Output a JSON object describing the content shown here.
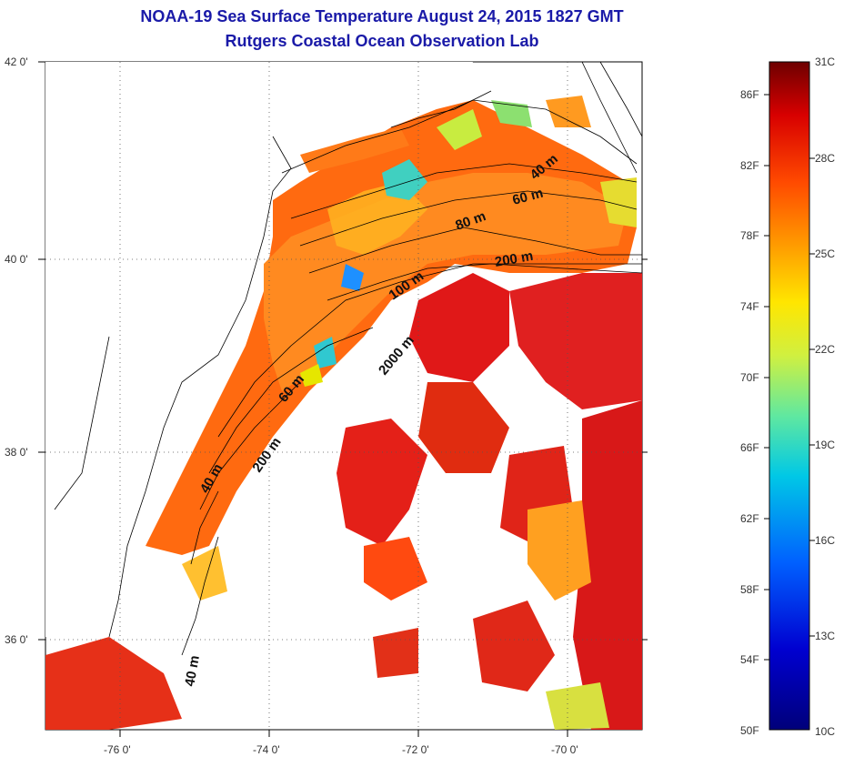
{
  "header": {
    "title": "NOAA-19 Sea Surface Temperature August 24, 2015 1827 GMT",
    "subtitle": "Rutgers Coastal Ocean Observation Lab"
  },
  "map": {
    "lat_labels": [
      "42 0'",
      "40 0'",
      "38 0'",
      "36 0'"
    ],
    "lon_labels": [
      "-76 0'",
      "-74 0'",
      "-72 0'",
      "-70 0'"
    ],
    "isobath_labels": [
      "40 m",
      "60 m",
      "80 m",
      "200 m",
      "100 m",
      "2000 m",
      "60 m",
      "200 m",
      "40 m",
      "40 m"
    ]
  },
  "colorbar": {
    "fahrenheit_labels": [
      "86F",
      "82F",
      "78F",
      "74F",
      "70F",
      "66F",
      "62F",
      "58F",
      "54F",
      "50F"
    ],
    "celsius_labels": [
      "31C",
      "28C",
      "25C",
      "22C",
      "19C",
      "16C",
      "13C",
      "10C"
    ],
    "colors": [
      "#7a0000",
      "#d10000",
      "#ff3c00",
      "#ff9600",
      "#ffe600",
      "#b4f046",
      "#28d7b4",
      "#00a0ff",
      "#0050ff",
      "#0000c8",
      "#00007a"
    ]
  }
}
